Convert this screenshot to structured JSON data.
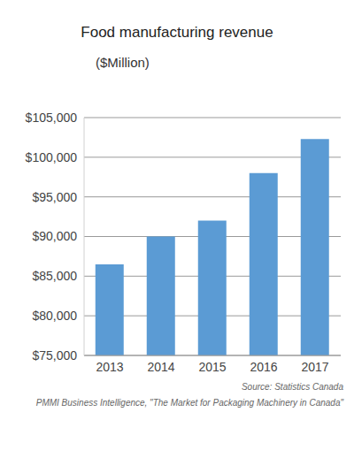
{
  "chart_data": {
    "type": "bar",
    "title": "Food manufacturing revenue",
    "subtitle": "($Million)",
    "categories": [
      "2013",
      "2014",
      "2015",
      "2016",
      "2017"
    ],
    "values": [
      86500,
      90000,
      92000,
      98000,
      102300
    ],
    "color": "#5b9bd4",
    "ylim": [
      75000,
      105000
    ],
    "yticks": [
      {
        "value": 75000,
        "label": "$75,000"
      },
      {
        "value": 80000,
        "label": "$80,000"
      },
      {
        "value": 85000,
        "label": "$85,000"
      },
      {
        "value": 90000,
        "label": "$90,000"
      },
      {
        "value": 95000,
        "label": "$95,000"
      },
      {
        "value": 100000,
        "label": "$100,000"
      },
      {
        "value": 105000,
        "label": "$105,000"
      }
    ],
    "grid": true,
    "annotations": [
      "Source: Statistics Canada",
      "PMMI Business Intelligence, \"The Market for Packaging Machinery in Canada\""
    ]
  }
}
